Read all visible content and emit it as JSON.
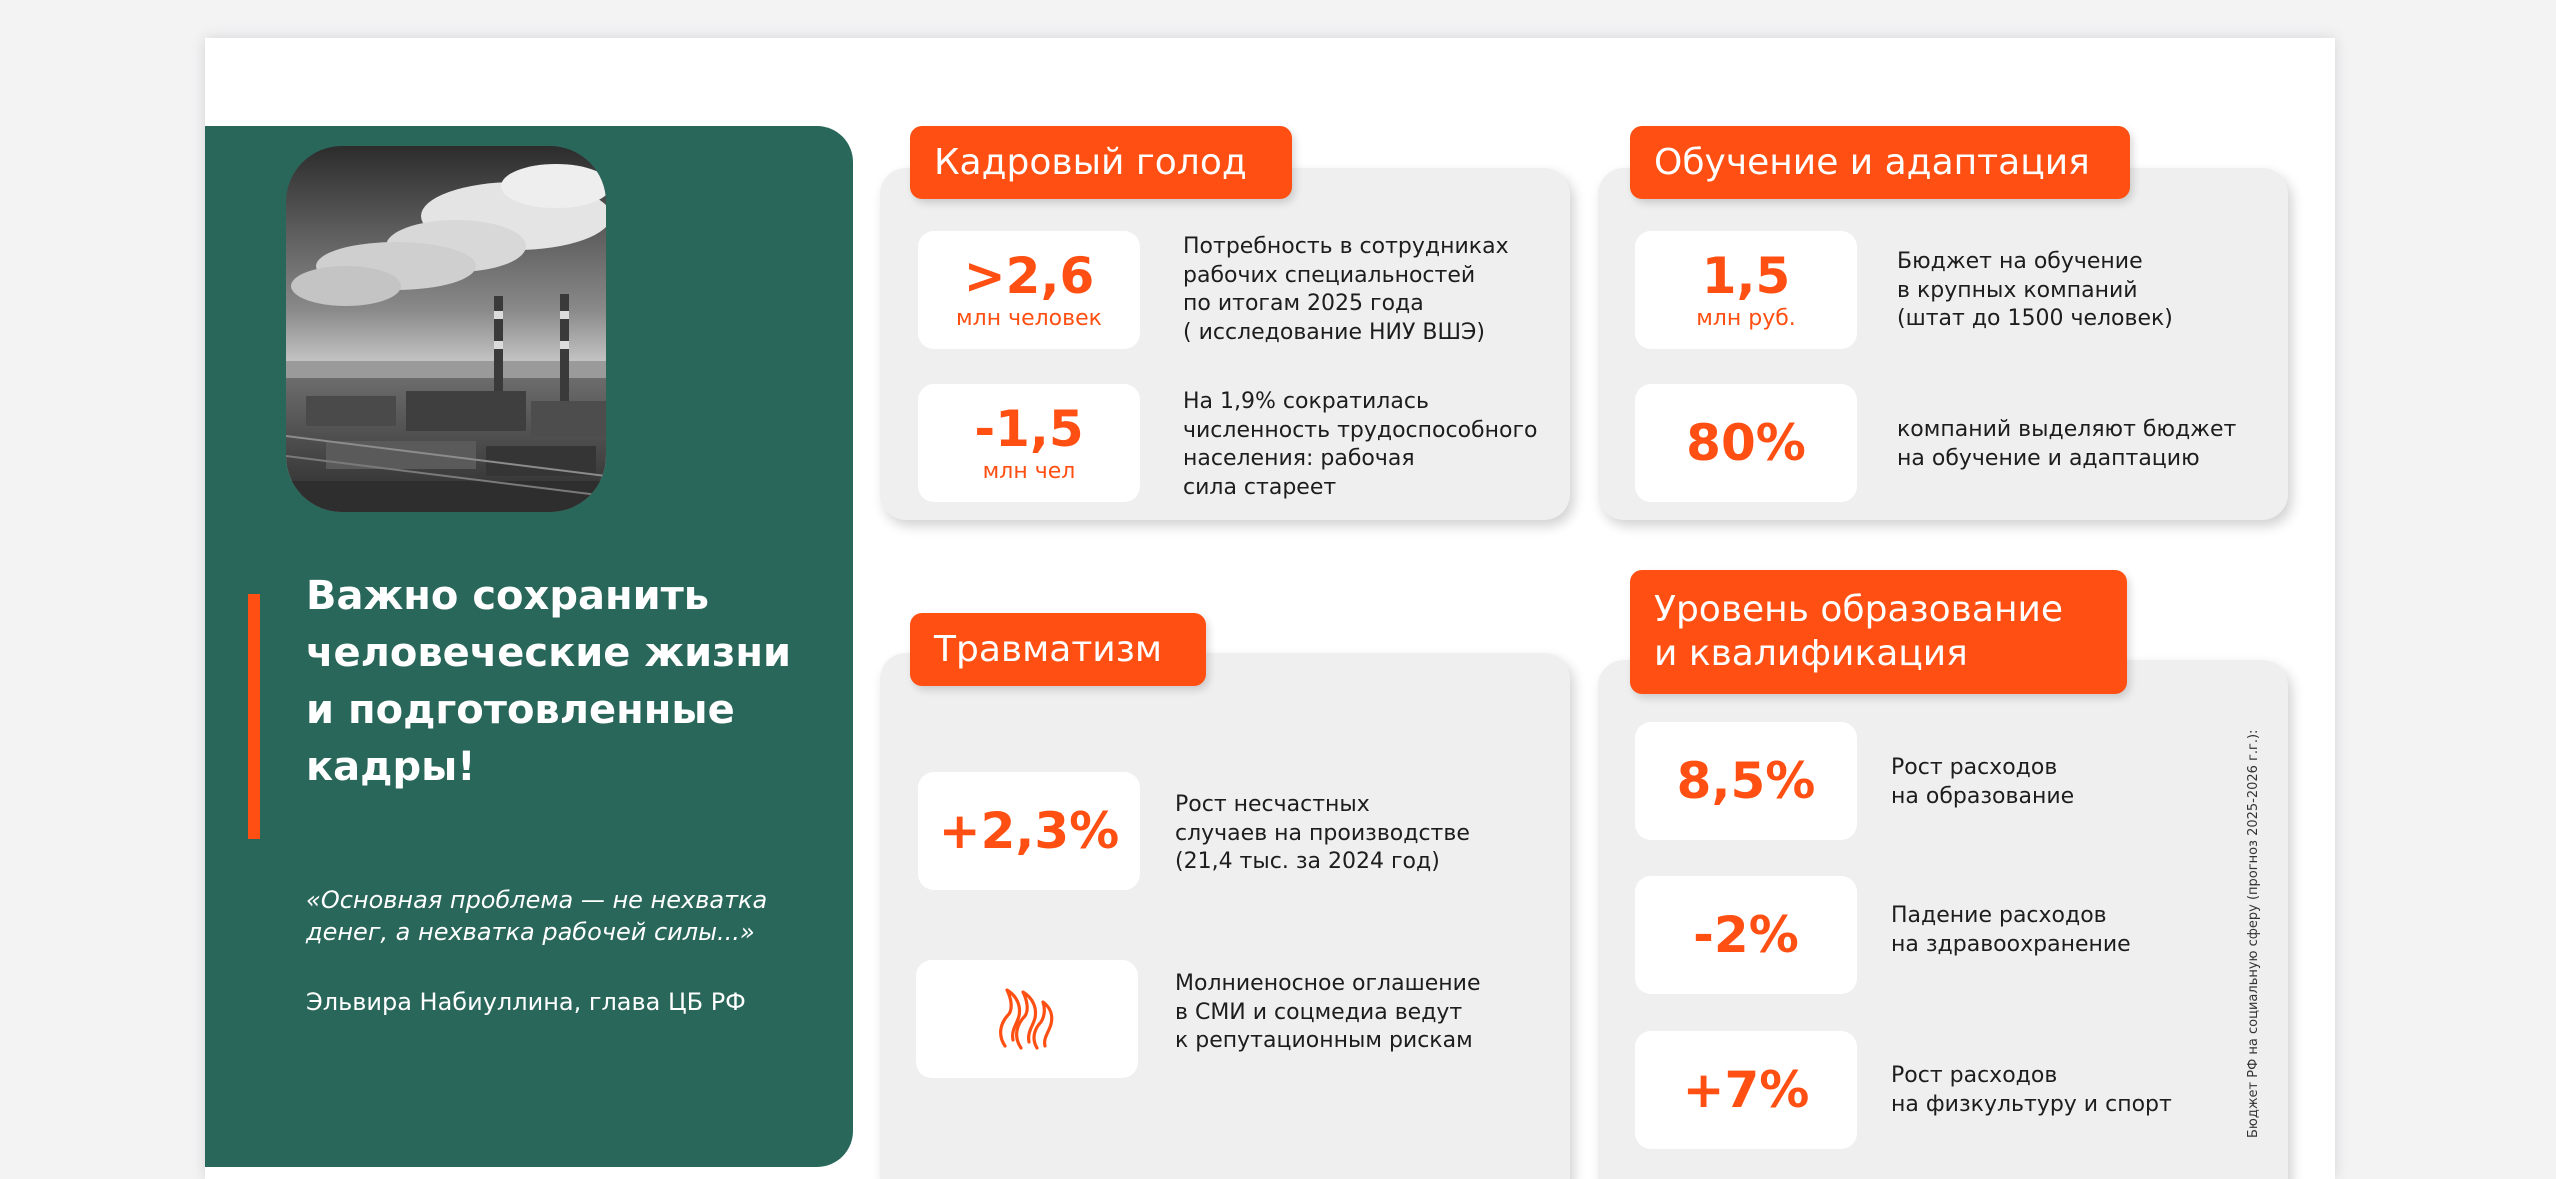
{
  "left_panel": {
    "headline": "Важно сохранить человеческие жизни и подготовленные кадры!",
    "quote": "«Основная проблема — не нехватка денег, а нехватка рабочей силы...»",
    "author": "Эльвира Набиуллина, глава ЦБ РФ"
  },
  "sections": {
    "staff_shortage": {
      "title": "Кадровый голод",
      "stats": [
        {
          "value": ">2,6",
          "unit": "млн человек",
          "text": "Потребность в сотрудниках\nрабочих специальностей\nпо итогам 2025 года\n( исследование НИУ ВШЭ)"
        },
        {
          "value": "-1,5",
          "unit": "млн чел",
          "text": "На 1,9% сократилась\nчисленность трудоспособного\nнаселения: рабочая\nсила стареет"
        }
      ]
    },
    "training": {
      "title": "Обучение и адаптация",
      "stats": [
        {
          "value": "1,5",
          "unit": "млн руб.",
          "text": "Бюджет на обучение\nв крупных компаний\n(штат до 1500 человек)"
        },
        {
          "value": "80%",
          "text": "компаний выделяют бюджет\nна обучение и адаптацию"
        }
      ]
    },
    "injuries": {
      "title": "Травматизм",
      "stats": [
        {
          "value": "+2,3%",
          "text": "Рост несчастных\nслучаев на производстве\n(21,4 тыс. за 2024 год)"
        },
        {
          "icon": "flame-icon",
          "text": "Молниеносное оглашение\nв СМИ и соцмедиа ведут\nк репутационным рискам"
        }
      ]
    },
    "education": {
      "title": "Уровень образование\nи квалификация",
      "stats": [
        {
          "value": "8,5%",
          "text": "Рост расходов\nна образование"
        },
        {
          "value": "-2%",
          "text": "Падение расходов\nна здравоохранение"
        },
        {
          "value": "+7%",
          "text": "Рост расходов\nна физкультуру и спорт"
        }
      ],
      "side_note": "Бюджет РФ на социальную сферу (прогноз 2025-2026 г.г.):"
    }
  },
  "colors": {
    "accent": "#ff4f12",
    "panel_green": "#29675a",
    "card_bg": "#efefef"
  }
}
